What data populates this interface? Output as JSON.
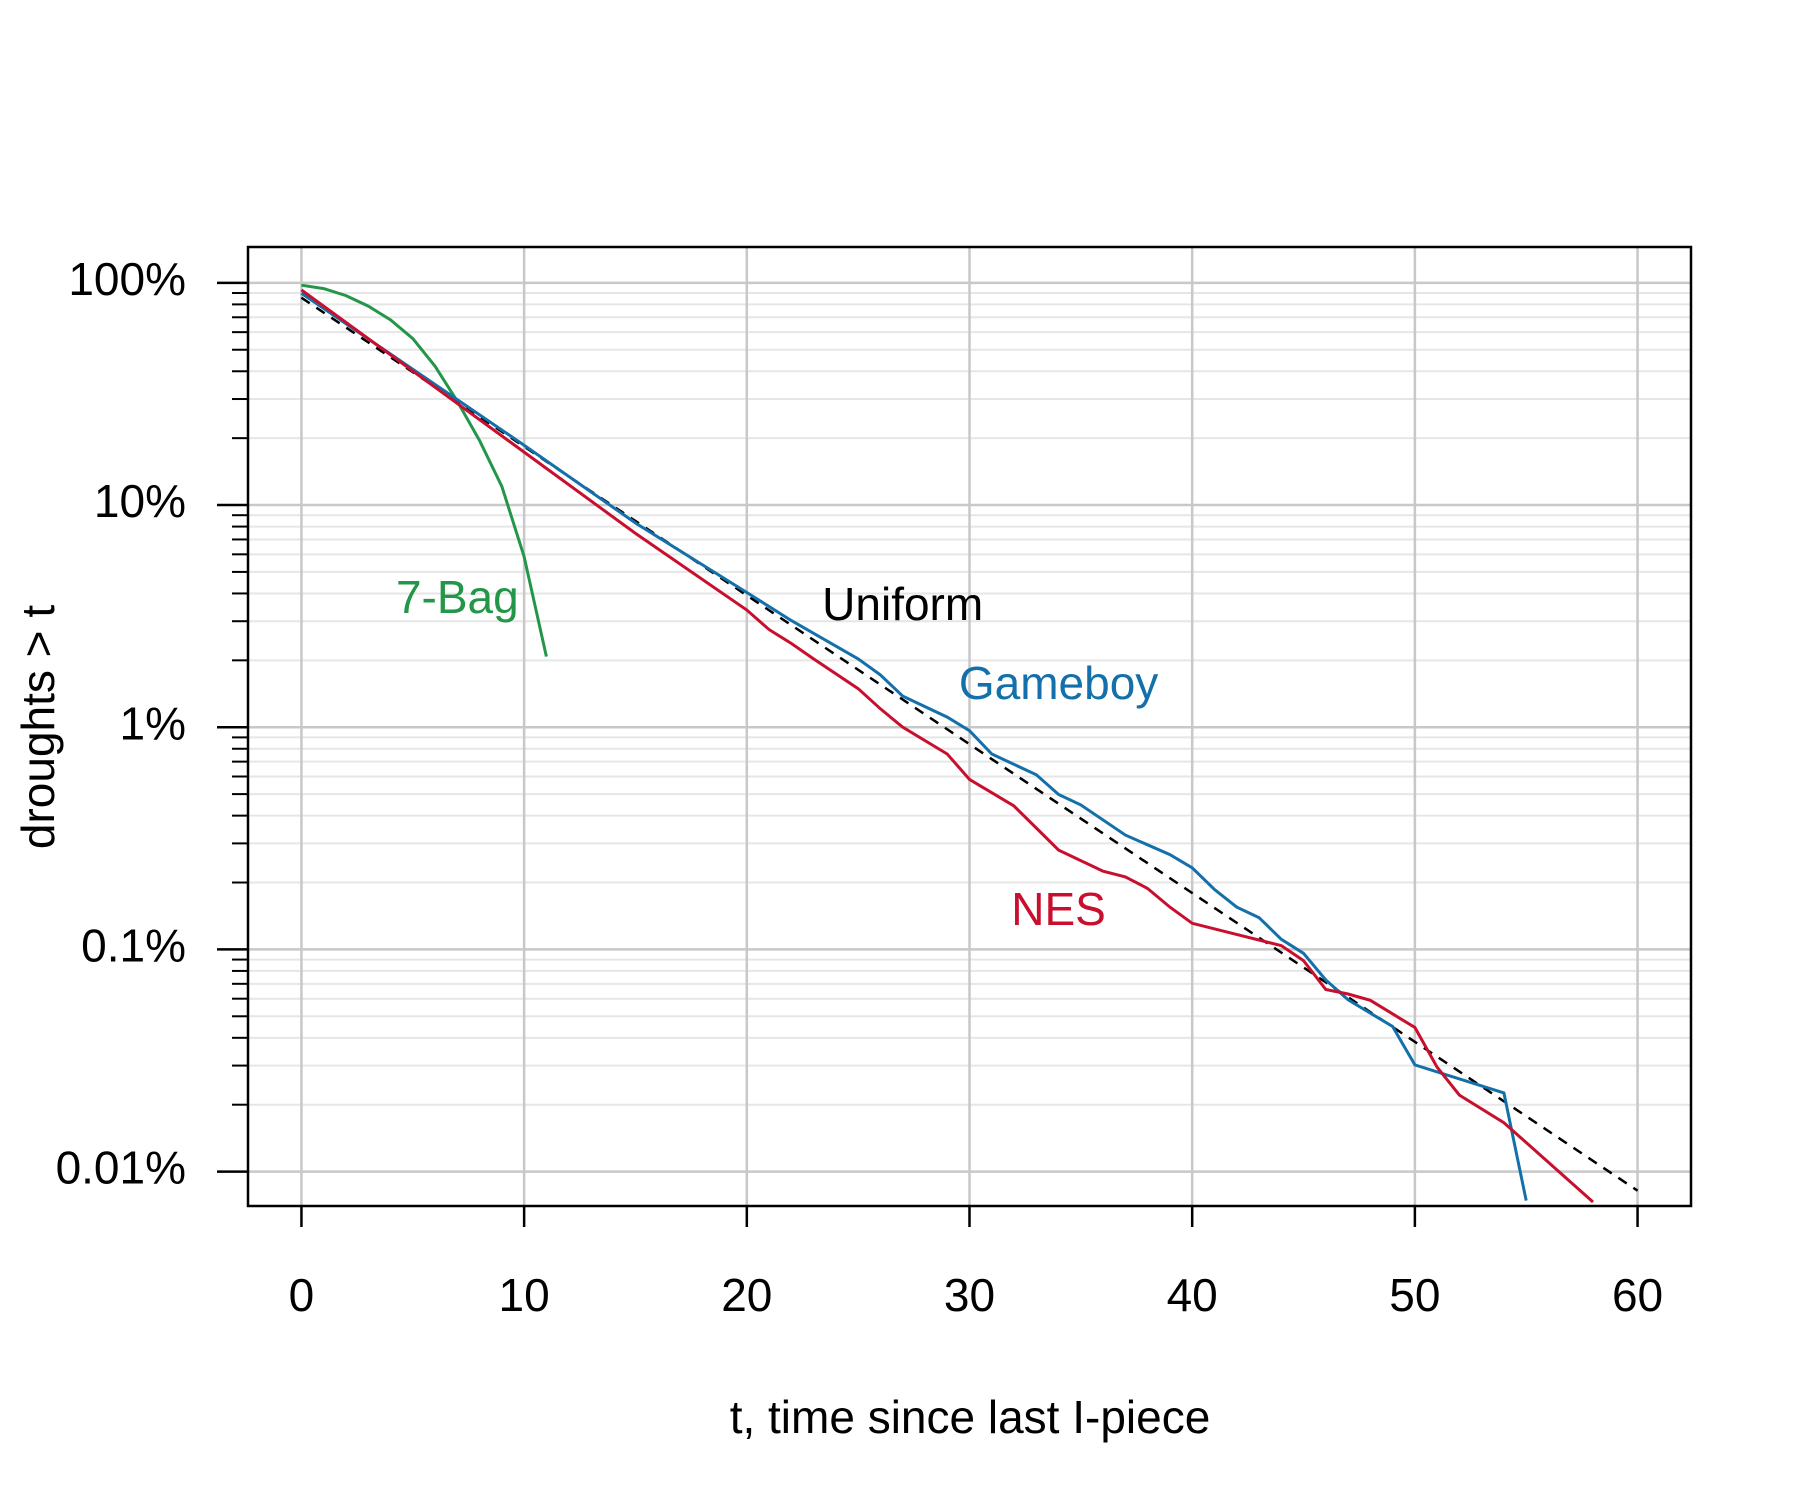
{
  "chart_data": {
    "type": "line",
    "xlabel": "t, time since last I-piece",
    "ylabel": "droughts > t",
    "xlim": [
      -2.4,
      62.4
    ],
    "ylim": [
      0.007,
      145
    ],
    "log_y": true,
    "grid": true,
    "xticks": [
      0,
      10,
      20,
      30,
      40,
      50,
      60
    ],
    "yticks": [
      {
        "value": 0.01,
        "label": "0.01%"
      },
      {
        "value": 0.1,
        "label": "0.1%"
      },
      {
        "value": 1,
        "label": "1%"
      },
      {
        "value": 10,
        "label": "10%"
      },
      {
        "value": 100,
        "label": "100%"
      }
    ],
    "yminorticks": [
      0.02,
      0.03,
      0.04,
      0.05,
      0.06,
      0.07,
      0.08,
      0.09,
      0.2,
      0.3,
      0.4,
      0.5,
      0.6,
      0.7,
      0.8,
      0.9,
      2,
      3,
      4,
      5,
      6,
      7,
      8,
      9,
      20,
      30,
      40,
      50,
      60,
      70,
      80,
      90
    ],
    "series": [
      {
        "name": "7-Bag",
        "color": "#23964a",
        "x": [
          0,
          1,
          2,
          3,
          4,
          5,
          6,
          7,
          8,
          9,
          10,
          11
        ],
        "values": [
          97.6,
          94.2,
          87.6,
          78.6,
          68.1,
          56.1,
          42.1,
          29.3,
          19.5,
          12.1,
          5.86,
          2.08
        ]
      },
      {
        "name": "Uniform",
        "color": "#000000",
        "dashed": true,
        "x": [
          0,
          60
        ],
        "values": [
          85.7,
          0.0082
        ]
      },
      {
        "name": "Gameboy",
        "color": "#1370aa",
        "x": [
          0,
          10,
          15,
          20,
          22,
          25,
          26,
          27,
          29,
          30,
          31,
          33,
          34,
          35,
          37,
          39,
          40,
          41,
          42,
          43,
          44,
          45,
          46,
          47,
          49,
          50,
          54,
          55
        ],
        "values": [
          89.7,
          18.6,
          8.3,
          4.04,
          3.02,
          2.03,
          1.72,
          1.38,
          1.11,
          0.965,
          0.758,
          0.611,
          0.498,
          0.447,
          0.327,
          0.267,
          0.233,
          0.186,
          0.155,
          0.139,
          0.111,
          0.096,
          0.0728,
          0.0593,
          0.045,
          0.0302,
          0.0226,
          0.0074
        ]
      },
      {
        "name": "NES",
        "color": "#c8102e",
        "x": [
          0,
          10,
          15,
          20,
          21,
          22,
          23,
          25,
          26,
          27,
          29,
          30,
          32,
          33,
          34,
          36,
          37,
          38,
          39,
          40,
          44,
          45,
          46,
          47,
          48,
          50,
          51,
          52,
          54,
          58
        ],
        "values": [
          93.0,
          17.3,
          7.45,
          3.37,
          2.75,
          2.38,
          2.03,
          1.49,
          1.21,
          1.0,
          0.758,
          0.582,
          0.442,
          0.352,
          0.28,
          0.225,
          0.212,
          0.188,
          0.155,
          0.131,
          0.104,
          0.089,
          0.066,
          0.063,
          0.059,
          0.0445,
          0.0295,
          0.0221,
          0.0166,
          0.0073
        ]
      }
    ]
  }
}
